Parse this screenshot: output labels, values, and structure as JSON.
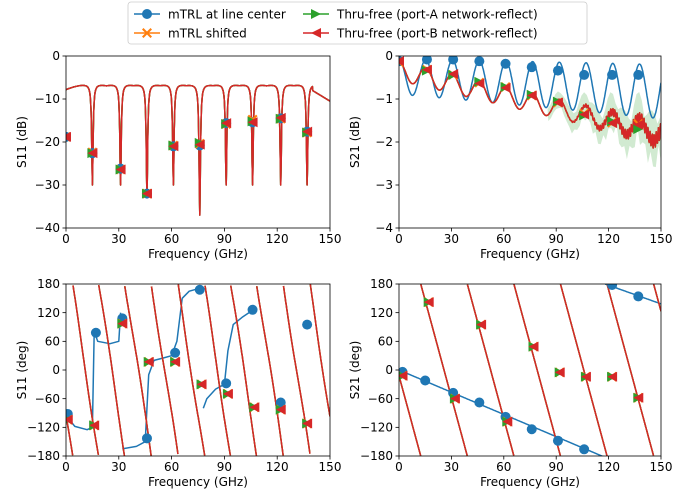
{
  "legend": {
    "entries": [
      {
        "label": "mTRL at line center",
        "color": "#1f77b4",
        "marker": "circle"
      },
      {
        "label": "mTRL shifted",
        "color": "#ff7f0e",
        "marker": "x"
      },
      {
        "label": "Thru-free (port-A network-reflect)",
        "color": "#2ca02c",
        "marker": "triangle-right"
      },
      {
        "label": "Thru-free (port-B network-reflect)",
        "color": "#d62728",
        "marker": "triangle-left"
      }
    ]
  },
  "chart_data": [
    {
      "type": "line",
      "id": "s11-mag",
      "xlabel": "Frequency (GHz)",
      "ylabel": "S11 (dB)",
      "xlim": [
        0,
        150
      ],
      "ylim": [
        -40,
        0
      ],
      "xticks": [
        0,
        30,
        60,
        90,
        120,
        150
      ],
      "yticks": [
        -40,
        -30,
        -20,
        -10,
        0
      ],
      "series": [
        {
          "name": "mTRL at line center",
          "color": "#1f77b4",
          "marker": "circle",
          "markers": [
            [
              0,
              -18.8
            ],
            [
              15,
              -22.6
            ],
            [
              31,
              -26.2
            ],
            [
              46,
              -32.0
            ],
            [
              61,
              -21.0
            ],
            [
              76,
              -20.8
            ],
            [
              91,
              -15.6
            ],
            [
              106,
              -15.4
            ],
            [
              122,
              -14.5
            ],
            [
              137,
              -17.6
            ]
          ]
        },
        {
          "name": "mTRL shifted",
          "color": "#ff7f0e",
          "marker": "x",
          "markers": [
            [
              0,
              -18.8
            ],
            [
              15,
              -22.4
            ],
            [
              31,
              -26.4
            ],
            [
              46,
              -32.0
            ],
            [
              61,
              -20.8
            ],
            [
              76,
              -20.4
            ],
            [
              91,
              -15.8
            ],
            [
              106,
              -14.8
            ],
            [
              122,
              -14.6
            ],
            [
              137,
              -17.8
            ]
          ]
        },
        {
          "name": "Thru-free (port-A network-reflect)",
          "color": "#2ca02c",
          "marker": "triangle-right",
          "markers": [
            [
              0,
              -18.8
            ],
            [
              15,
              -22.6
            ],
            [
              31,
              -26.4
            ],
            [
              46,
              -32.0
            ],
            [
              61,
              -20.8
            ],
            [
              76,
              -20.2
            ],
            [
              91,
              -15.8
            ],
            [
              106,
              -15.2
            ],
            [
              122,
              -14.6
            ],
            [
              137,
              -17.8
            ]
          ]
        },
        {
          "name": "Thru-free (port-B network-reflect)",
          "color": "#d62728",
          "marker": "triangle-left",
          "markers": [
            [
              0,
              -18.8
            ],
            [
              15,
              -22.6
            ],
            [
              31,
              -26.4
            ],
            [
              46,
              -32.0
            ],
            [
              61,
              -21.0
            ],
            [
              76,
              -20.6
            ],
            [
              91,
              -15.6
            ],
            [
              106,
              -15.4
            ],
            [
              122,
              -14.4
            ],
            [
              137,
              -17.6
            ]
          ]
        }
      ]
    },
    {
      "type": "line",
      "id": "s21-mag",
      "xlabel": "Frequency (GHz)",
      "ylabel": "S21 (dB)",
      "xlim": [
        0,
        150
      ],
      "ylim": [
        -4,
        0
      ],
      "xticks": [
        0,
        30,
        60,
        90,
        120,
        150
      ],
      "yticks": [
        -4,
        -3,
        -2,
        -1,
        0
      ],
      "series": [
        {
          "name": "mTRL at line center",
          "color": "#1f77b4",
          "marker": "circle",
          "markers": [
            [
              0,
              -0.12
            ],
            [
              16,
              -0.08
            ],
            [
              31,
              -0.08
            ],
            [
              46,
              -0.12
            ],
            [
              61,
              -0.18
            ],
            [
              76,
              -0.26
            ],
            [
              91,
              -0.34
            ],
            [
              106,
              -0.44
            ],
            [
              122,
              -0.44
            ],
            [
              137,
              -0.44
            ]
          ]
        },
        {
          "name": "mTRL shifted",
          "color": "#ff7f0e",
          "marker": "x",
          "markers": [
            [
              0,
              -0.14
            ],
            [
              16,
              -0.32
            ],
            [
              31,
              -0.44
            ],
            [
              46,
              -0.62
            ],
            [
              61,
              -0.72
            ],
            [
              76,
              -0.92
            ],
            [
              91,
              -1.08
            ],
            [
              106,
              -1.34
            ],
            [
              122,
              -1.55
            ],
            [
              137,
              -1.58
            ]
          ]
        },
        {
          "name": "Thru-free (port-A network-reflect)",
          "color": "#2ca02c",
          "marker": "triangle-right",
          "markers": [
            [
              0,
              -0.14
            ],
            [
              16,
              -0.34
            ],
            [
              31,
              -0.44
            ],
            [
              46,
              -0.6
            ],
            [
              61,
              -0.72
            ],
            [
              76,
              -0.9
            ],
            [
              91,
              -1.06
            ],
            [
              106,
              -1.38
            ],
            [
              122,
              -1.52
            ],
            [
              137,
              -1.7
            ]
          ]
        },
        {
          "name": "Thru-free (port-B network-reflect)",
          "color": "#d62728",
          "marker": "triangle-left",
          "markers": [
            [
              0,
              -0.12
            ],
            [
              16,
              -0.32
            ],
            [
              31,
              -0.42
            ],
            [
              46,
              -0.64
            ],
            [
              61,
              -0.74
            ],
            [
              76,
              -0.92
            ],
            [
              91,
              -1.08
            ],
            [
              106,
              -1.36
            ],
            [
              122,
              -1.56
            ],
            [
              137,
              -1.6
            ]
          ]
        }
      ]
    },
    {
      "type": "line",
      "id": "s11-phase",
      "xlabel": "Frequency (GHz)",
      "ylabel": "S11 (deg)",
      "xlim": [
        0,
        150
      ],
      "ylim": [
        -180,
        180
      ],
      "xticks": [
        0,
        30,
        60,
        90,
        120,
        150
      ],
      "yticks": [
        -180,
        -120,
        -60,
        0,
        60,
        120,
        180
      ],
      "series": [
        {
          "name": "mTRL at line center",
          "color": "#1f77b4",
          "marker": "circle",
          "markers": [
            [
              1,
              -92
            ],
            [
              17,
              78
            ],
            [
              32,
              108
            ],
            [
              46,
              -143
            ],
            [
              62,
              36
            ],
            [
              76,
              168
            ],
            [
              91,
              -28
            ],
            [
              106,
              126
            ],
            [
              122,
              -68
            ],
            [
              137,
              95
            ]
          ]
        },
        {
          "name": "mTRL shifted",
          "color": "#ff7f0e",
          "marker": "x",
          "markers": [
            [
              1,
              -104
            ],
            [
              16,
              -116
            ],
            [
              32,
              97
            ],
            [
              47,
              17
            ],
            [
              62,
              17
            ],
            [
              77,
              -30
            ],
            [
              92,
              -50
            ],
            [
              107,
              -78
            ],
            [
              122,
              -83
            ],
            [
              137,
              -112
            ]
          ]
        },
        {
          "name": "Thru-free (port-A network-reflect)",
          "color": "#2ca02c",
          "marker": "triangle-right",
          "markers": [
            [
              1,
              -104
            ],
            [
              16,
              -116
            ],
            [
              32,
              97
            ],
            [
              47,
              17
            ],
            [
              62,
              17
            ],
            [
              77,
              -30
            ],
            [
              92,
              -50
            ],
            [
              107,
              -78
            ],
            [
              122,
              -83
            ],
            [
              137,
              -112
            ]
          ]
        },
        {
          "name": "Thru-free (port-B network-reflect)",
          "color": "#d62728",
          "marker": "triangle-left",
          "markers": [
            [
              1,
              -104
            ],
            [
              16,
              -116
            ],
            [
              32,
              97
            ],
            [
              47,
              17
            ],
            [
              62,
              17
            ],
            [
              77,
              -30
            ],
            [
              92,
              -50
            ],
            [
              107,
              -78
            ],
            [
              122,
              -83
            ],
            [
              137,
              -112
            ]
          ]
        }
      ]
    },
    {
      "type": "line",
      "id": "s21-phase",
      "xlabel": "Frequency (GHz)",
      "ylabel": "S21 (deg)",
      "xlim": [
        0,
        150
      ],
      "ylim": [
        -180,
        180
      ],
      "xticks": [
        0,
        30,
        60,
        90,
        120,
        150
      ],
      "yticks": [
        -180,
        -120,
        -60,
        0,
        60,
        120,
        180
      ],
      "series": [
        {
          "name": "mTRL at line center",
          "color": "#1f77b4",
          "marker": "circle",
          "markers": [
            [
              2,
              -4
            ],
            [
              15,
              -22
            ],
            [
              31,
              -48
            ],
            [
              46,
              -68
            ],
            [
              61,
              -98
            ],
            [
              76,
              -124
            ],
            [
              91,
              -148
            ],
            [
              106,
              -166
            ],
            [
              122,
              178
            ],
            [
              137,
              154
            ]
          ]
        },
        {
          "name": "mTRL shifted",
          "color": "#ff7f0e",
          "marker": "x",
          "markers": [
            [
              2,
              -12
            ],
            [
              17,
              142
            ],
            [
              32,
              -60
            ],
            [
              47,
              95
            ],
            [
              62,
              -108
            ],
            [
              77,
              49
            ],
            [
              92,
              -5
            ],
            [
              107,
              -14
            ],
            [
              122,
              -14
            ],
            [
              137,
              -58
            ]
          ]
        },
        {
          "name": "Thru-free (port-A network-reflect)",
          "color": "#2ca02c",
          "marker": "triangle-right",
          "markers": [
            [
              2,
              -12
            ],
            [
              17,
              142
            ],
            [
              32,
              -60
            ],
            [
              47,
              95
            ],
            [
              62,
              -108
            ],
            [
              77,
              49
            ],
            [
              92,
              -5
            ],
            [
              107,
              -14
            ],
            [
              122,
              -14
            ],
            [
              137,
              -58
            ]
          ]
        },
        {
          "name": "Thru-free (port-B network-reflect)",
          "color": "#d62728",
          "marker": "triangle-left",
          "markers": [
            [
              2,
              -12
            ],
            [
              17,
              142
            ],
            [
              32,
              -60
            ],
            [
              47,
              95
            ],
            [
              62,
              -108
            ],
            [
              77,
              49
            ],
            [
              92,
              -5
            ],
            [
              107,
              -14
            ],
            [
              122,
              -14
            ],
            [
              137,
              -58
            ]
          ]
        }
      ]
    }
  ]
}
